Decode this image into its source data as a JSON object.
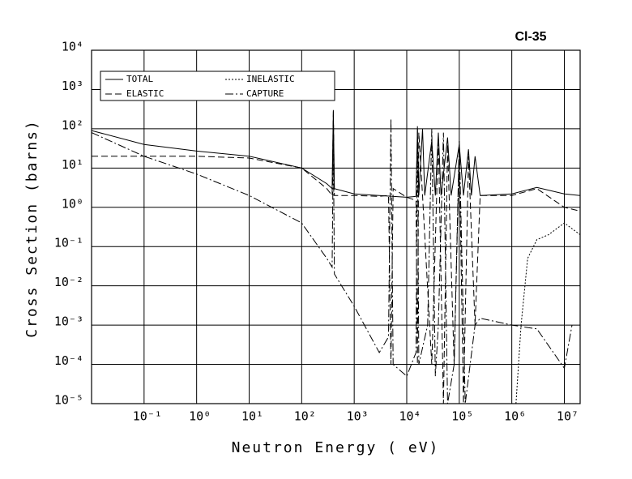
{
  "chart_data": {
    "type": "line",
    "title": "Cl-35",
    "xlabel": "Neutron Energy ( eV)",
    "ylabel": "Cross Section (barns)",
    "xscale": "log",
    "yscale": "log",
    "grid": true,
    "legend": "upper left",
    "xlim": [
      0.01,
      20000000
    ],
    "ylim": [
      1e-05,
      10000
    ],
    "xticks": [
      {
        "value": 0.1,
        "label": "10⁻¹"
      },
      {
        "value": 1,
        "label": "10⁰"
      },
      {
        "value": 10,
        "label": "10¹"
      },
      {
        "value": 100,
        "label": "10²"
      },
      {
        "value": 1000,
        "label": "10³"
      },
      {
        "value": 10000,
        "label": "10⁴"
      },
      {
        "value": 100000,
        "label": "10⁵"
      },
      {
        "value": 1000000,
        "label": "10⁶"
      },
      {
        "value": 10000000,
        "label": "10⁷"
      }
    ],
    "yticks": [
      {
        "value": 1e-05,
        "label": "10⁻⁵"
      },
      {
        "value": 0.0001,
        "label": "10⁻⁴"
      },
      {
        "value": 0.001,
        "label": "10⁻³"
      },
      {
        "value": 0.01,
        "label": "10⁻²"
      },
      {
        "value": 0.1,
        "label": "10⁻¹"
      },
      {
        "value": 1,
        "label": "10⁰"
      },
      {
        "value": 10,
        "label": "10¹"
      },
      {
        "value": 100,
        "label": "10²"
      },
      {
        "value": 1000,
        "label": "10³"
      },
      {
        "value": 10000,
        "label": "10⁴"
      }
    ],
    "series": [
      {
        "name": "TOTAL",
        "color": "#000000",
        "dash": "solid",
        "x": [
          0.01,
          0.1,
          1,
          10,
          100,
          300,
          380,
          400,
          420,
          1000,
          3000,
          10000,
          15000,
          16000,
          17000,
          20000,
          22000,
          30000,
          35000,
          40000,
          45000,
          60000,
          70000,
          100000,
          120000,
          150000,
          170000,
          200000,
          250000,
          1000000,
          3000000,
          10000000,
          20000000
        ],
        "values": [
          90,
          40,
          27,
          20,
          10,
          4,
          3,
          300,
          3,
          2.2,
          2,
          1.8,
          1.9,
          100,
          2,
          100,
          2,
          50,
          2,
          80,
          2,
          60,
          2,
          40,
          2,
          30,
          2,
          20,
          2,
          2.2,
          3.2,
          2.2,
          2
        ]
      },
      {
        "name": "ELASTIC",
        "color": "#000000",
        "dash": "dashed",
        "x": [
          0.01,
          1,
          10,
          100,
          300,
          380,
          400,
          420,
          1000,
          3000,
          4500,
          5000,
          5500,
          10000,
          15000,
          16000,
          17000,
          20000,
          30000,
          40000,
          50000,
          60000,
          80000,
          100000,
          120000,
          150000,
          200000,
          250000,
          1000000,
          3000000,
          10000000,
          20000000
        ],
        "values": [
          20,
          20,
          18,
          10,
          3,
          2,
          280,
          2,
          2,
          1.9,
          2,
          0.0001,
          3,
          1.8,
          1.5,
          0.0001,
          80,
          2,
          0.0001,
          60,
          1e-05,
          40,
          0.0001,
          30,
          1e-05,
          20,
          0.001,
          2,
          2,
          3,
          1,
          0.8
        ]
      },
      {
        "name": "INELASTIC",
        "color": "#000000",
        "dash": "dotted",
        "x": [
          1200000,
          1500000,
          2000000,
          3000000,
          5000000,
          10000000,
          20000000
        ],
        "values": [
          1e-05,
          0.001,
          0.05,
          0.15,
          0.2,
          0.4,
          0.2
        ]
      },
      {
        "name": "CAPTURE",
        "color": "#000000",
        "dash": "dashdot",
        "x": [
          0.01,
          0.1,
          1,
          10,
          100,
          300,
          380,
          400,
          420,
          1000,
          3000,
          4500,
          5000,
          5500,
          10000,
          15000,
          16000,
          17000,
          25000,
          30000,
          35000,
          40000,
          50000,
          60000,
          80000,
          100000,
          130000,
          200000,
          250000,
          1000000,
          3000000,
          10000000,
          14000000
        ],
        "values": [
          80,
          20,
          7,
          2,
          0.4,
          0.05,
          0.03,
          50,
          0.02,
          0.003,
          0.0002,
          0.0005,
          180,
          0.0001,
          5e-05,
          0.0002,
          120,
          0.0001,
          0.001,
          100,
          5e-05,
          0.001,
          80,
          1e-05,
          0.0001,
          50,
          1e-05,
          0.001,
          0.0015,
          0.001,
          0.0008,
          8e-05,
          0.001
        ]
      }
    ]
  }
}
